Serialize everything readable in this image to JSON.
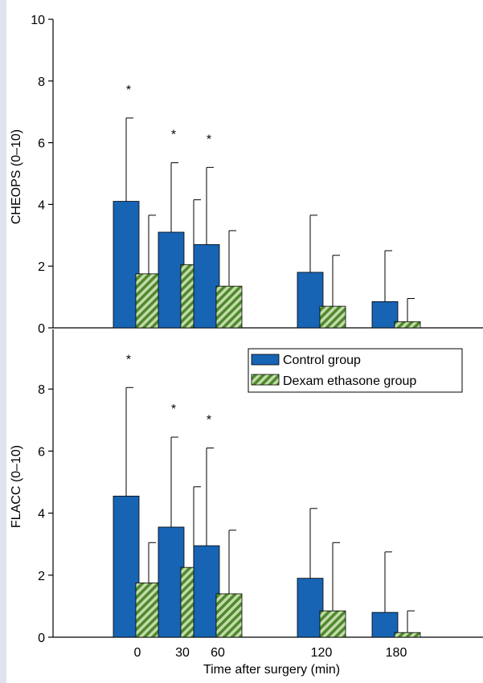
{
  "colors": {
    "control": "#1764b4",
    "dexa_stripe": "#4f8a2e",
    "dexa_light": "#c6dbac",
    "background_strip": "#dfe3ef"
  },
  "chart_data": [
    {
      "type": "bar",
      "categories": [
        "0",
        "30",
        "60",
        "120",
        "180"
      ],
      "ylabel": "CHEOPS (0–10)",
      "ylim": [
        0,
        10
      ],
      "yticks": [
        "0",
        "2",
        "4",
        "6",
        "8",
        "10"
      ],
      "legend": "none",
      "series": [
        {
          "name": "Control group",
          "values": [
            4.1,
            3.1,
            2.7,
            1.8,
            0.85
          ],
          "error": [
            2.7,
            2.25,
            2.5,
            1.85,
            1.65
          ]
        },
        {
          "name": "Dexam ethasone group",
          "values": [
            1.75,
            2.05,
            1.35,
            0.7,
            0.2
          ],
          "error": [
            1.9,
            2.1,
            1.8,
            1.65,
            0.75
          ]
        }
      ],
      "significance": [
        "*",
        "*",
        "*",
        "",
        ""
      ]
    },
    {
      "type": "bar",
      "categories": [
        "0",
        "30",
        "60",
        "120",
        "180"
      ],
      "xlabel": "Time after surgery (min)",
      "ylabel": "FLACC (0–10)",
      "ylim": [
        0,
        10
      ],
      "yticks": [
        "0",
        "2",
        "4",
        "6",
        "8"
      ],
      "legend": "top-right",
      "series": [
        {
          "name": "Control group",
          "values": [
            4.55,
            3.55,
            2.95,
            1.9,
            0.8
          ],
          "error": [
            3.5,
            2.9,
            3.15,
            2.25,
            1.95
          ]
        },
        {
          "name": "Dexam ethasone group",
          "values": [
            1.75,
            2.25,
            1.4,
            0.85,
            0.15
          ],
          "error": [
            1.3,
            2.6,
            2.05,
            2.2,
            0.7
          ]
        }
      ],
      "significance": [
        "*",
        "*",
        "*",
        "",
        ""
      ]
    }
  ]
}
